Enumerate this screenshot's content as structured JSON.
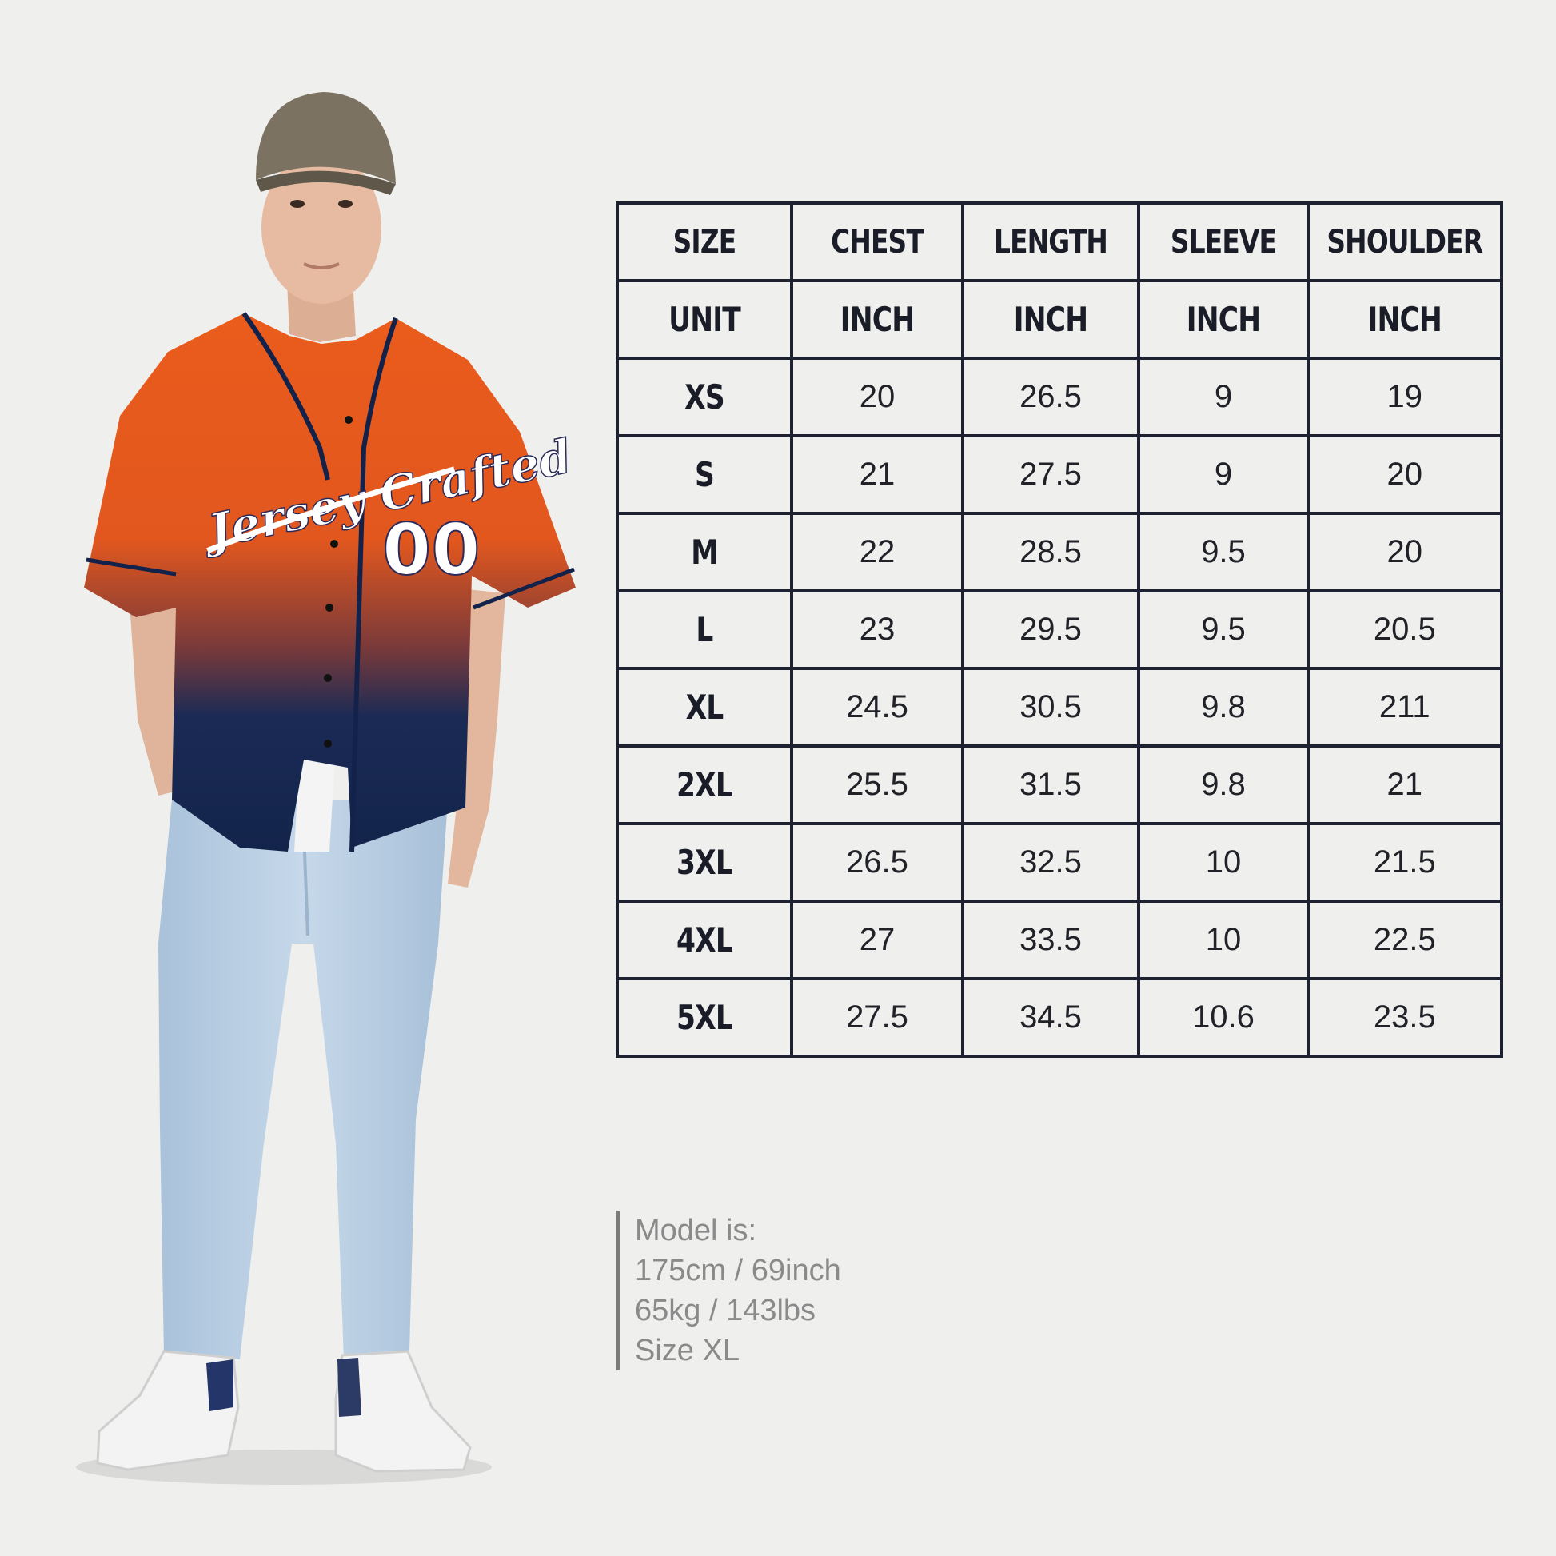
{
  "jersey": {
    "script_text": "Jersey Crafted",
    "number": "00"
  },
  "table": {
    "headers": [
      "SIZE",
      "CHEST",
      "LENGTH",
      "SLEEVE",
      "SHOULDER"
    ],
    "units": [
      "UNIT",
      "INCH",
      "INCH",
      "INCH",
      "INCH"
    ],
    "rows": [
      [
        "XS",
        "20",
        "26.5",
        "9",
        "19"
      ],
      [
        "S",
        "21",
        "27.5",
        "9",
        "20"
      ],
      [
        "M",
        "22",
        "28.5",
        "9.5",
        "20"
      ],
      [
        "L",
        "23",
        "29.5",
        "9.5",
        "20.5"
      ],
      [
        "XL",
        "24.5",
        "30.5",
        "9.8",
        "211"
      ],
      [
        "2XL",
        "25.5",
        "31.5",
        "9.8",
        "21"
      ],
      [
        "3XL",
        "26.5",
        "32.5",
        "10",
        "21.5"
      ],
      [
        "4XL",
        "27",
        "33.5",
        "10",
        "22.5"
      ],
      [
        "5XL",
        "27.5",
        "34.5",
        "10.6",
        "23.5"
      ]
    ]
  },
  "model_info": [
    "Model is:",
    "175cm / 69inch",
    "65kg / 143lbs",
    "Size XL"
  ],
  "colors": {
    "jersey_orange": "#e65a1e",
    "jersey_navy": "#13264f",
    "jeans": "#b9cfe3",
    "cap": "#7a7060",
    "table_border": "#1e2230"
  }
}
